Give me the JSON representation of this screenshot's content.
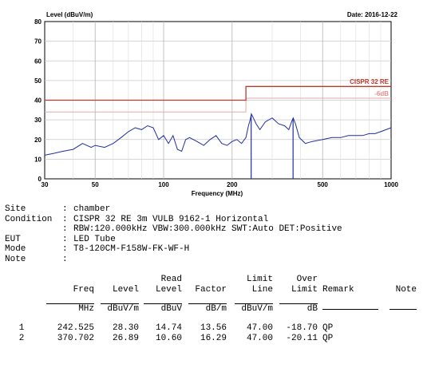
{
  "chart_data": {
    "type": "line",
    "title": "",
    "date_label": "Date: 2016-12-22",
    "ylabel": "Level (dBuV/m)",
    "xlabel": "Frequency (MHz)",
    "x_scale": "log",
    "xlim": [
      30,
      1000
    ],
    "ylim": [
      0,
      80
    ],
    "x_ticks": [
      30,
      50,
      100,
      200,
      500,
      1000
    ],
    "x_tick_labels": [
      "30",
      "50",
      "100",
      "200",
      "500",
      "1000"
    ],
    "y_ticks": [
      0,
      10,
      20,
      30,
      40,
      50,
      60,
      70,
      80
    ],
    "y_tick_labels": [
      "0",
      "10",
      "20",
      "30",
      "40",
      "50",
      "60",
      "70",
      "80"
    ],
    "grid": true,
    "limit_line": {
      "label": "CISPR 32 RE",
      "color": "#c0392b",
      "points": [
        [
          30,
          40
        ],
        [
          230,
          40
        ],
        [
          230,
          47
        ],
        [
          1000,
          47
        ]
      ]
    },
    "margin_line": {
      "label": "-6dB",
      "color": "#e6a9a9",
      "points": [
        [
          30,
          34
        ],
        [
          230,
          34
        ],
        [
          230,
          41
        ],
        [
          1000,
          41
        ]
      ]
    },
    "series": [
      {
        "color": "#1f2f9f",
        "x": [
          30,
          33,
          36,
          40,
          44,
          48,
          50,
          55,
          60,
          65,
          70,
          75,
          80,
          85,
          90,
          95,
          100,
          105,
          110,
          115,
          120,
          125,
          130,
          140,
          150,
          160,
          170,
          180,
          190,
          200,
          210,
          220,
          230,
          236,
          240,
          243,
          248,
          255,
          265,
          280,
          300,
          320,
          340,
          355,
          365,
          371,
          380,
          395,
          420,
          450,
          500,
          550,
          600,
          650,
          700,
          750,
          800,
          850,
          900,
          950,
          1000
        ],
        "y": [
          12,
          13,
          14,
          15,
          18,
          16,
          17,
          16,
          18,
          21,
          24,
          26,
          25,
          27,
          26,
          20,
          22,
          18,
          22,
          15,
          14,
          20,
          21,
          19,
          17,
          20,
          22,
          18,
          17,
          19,
          20,
          18,
          21,
          27,
          30,
          33,
          31,
          28,
          25,
          29,
          31,
          28,
          27,
          25,
          29,
          31,
          28,
          21,
          18,
          19,
          20,
          21,
          21,
          22,
          22,
          22,
          23,
          23,
          24,
          25,
          26
        ]
      }
    ],
    "markers": [
      {
        "freq": 242.525,
        "level": 28.3,
        "label": "1"
      },
      {
        "freq": 370.702,
        "level": 26.89,
        "label": "2"
      }
    ]
  },
  "info": [
    {
      "key": "Site",
      "value": "chamber"
    },
    {
      "key": "Condition",
      "value": "CISPR 32 RE 3m VULB 9162-1 Horizontal"
    },
    {
      "key": "",
      "value": "RBW:120.000kHz VBW:300.000kHz SWT:Auto DET:Positive"
    },
    {
      "key": "EUT",
      "value": "LED Tube"
    },
    {
      "key": "Mode",
      "value": "T8-120CM-F158W-FK-WF-H"
    },
    {
      "key": "Note",
      "value": ""
    }
  ],
  "table": {
    "header1": [
      "",
      "",
      "",
      "Read",
      "",
      "Limit",
      "Over",
      "",
      ""
    ],
    "header2": [
      "",
      "Freq",
      "Level",
      "Level",
      "Factor",
      "Line",
      "Limit",
      "Remark",
      "Note"
    ],
    "units": [
      "",
      "MHz",
      "dBuV/m",
      "dBuV",
      "dB/m",
      "dBuV/m",
      "dB",
      "",
      ""
    ],
    "rows": [
      [
        "1",
        "242.525",
        "28.30",
        "14.74",
        "13.56",
        "47.00",
        "-18.70",
        "QP",
        ""
      ],
      [
        "2",
        "370.702",
        "26.89",
        "10.60",
        "16.29",
        "47.00",
        "-20.11",
        "QP",
        ""
      ]
    ]
  }
}
